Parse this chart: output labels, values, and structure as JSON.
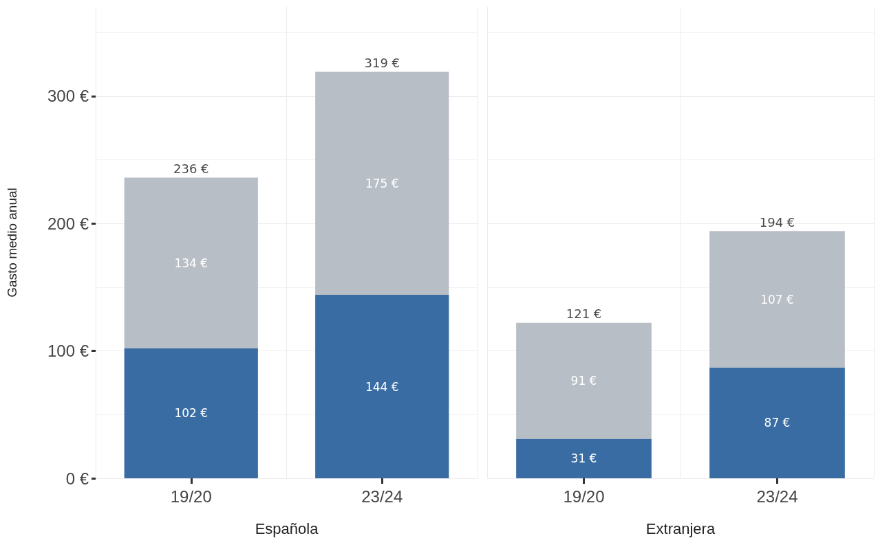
{
  "chart_data": [
    {
      "type": "bar",
      "stacked": true,
      "categories": [
        "19/20",
        "23/24"
      ],
      "xlabel": "Española",
      "ylabel": "Gasto medio anual",
      "ylim": [
        0,
        370
      ],
      "yticks": [
        {
          "value": 0,
          "label": "0 €"
        },
        {
          "value": 100,
          "label": "100 €"
        },
        {
          "value": 200,
          "label": "200 €"
        },
        {
          "value": 300,
          "label": "300 €"
        }
      ],
      "grid": true,
      "series": [
        {
          "color": "#386ca3",
          "values": [
            102,
            144
          ],
          "value_labels": [
            "102 €",
            "144 €"
          ]
        },
        {
          "color": "#b8bec6",
          "values": [
            134,
            175
          ],
          "value_labels": [
            "134 €",
            "175 €"
          ]
        }
      ],
      "totals": [
        "236 €",
        "319 €"
      ]
    },
    {
      "type": "bar",
      "stacked": true,
      "categories": [
        "19/20",
        "23/24"
      ],
      "xlabel": "Extranjera",
      "ylim": [
        0,
        370
      ],
      "yticks": [
        0,
        100,
        200,
        300
      ],
      "grid": true,
      "tick_labels": "x",
      "series": [
        {
          "color": "#386ca3",
          "values": [
            31,
            87
          ],
          "value_labels": [
            "31 €",
            "87 €"
          ]
        },
        {
          "color": "#b8bec6",
          "values": [
            91,
            107
          ],
          "value_labels": [
            "91 €",
            "107 €"
          ]
        }
      ],
      "totals": [
        "121 €",
        "194 €"
      ]
    }
  ]
}
